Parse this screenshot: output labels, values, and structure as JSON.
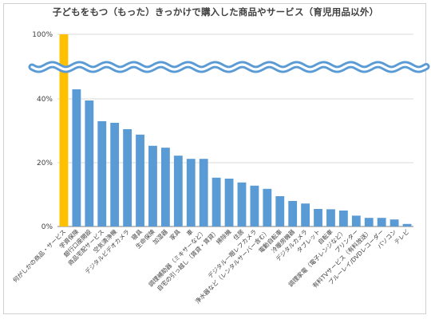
{
  "chart_data": {
    "type": "bar",
    "title": "子どもをもつ（もった）きっかけで購入した商品やサービス（育児用品以外）",
    "xlabel": "",
    "ylabel": "",
    "y_tick_labels": [
      "0%",
      "20%",
      "40%",
      "100%"
    ],
    "y_scale": "broken",
    "y_break": {
      "from": 50,
      "to": 95
    },
    "grid": true,
    "legend": "none",
    "categories": [
      "何がしかの商品・サービス",
      "学資保険",
      "銀行口座開設",
      "商品宅配サービス",
      "空気清浄機",
      "デジタルビデオカメラ",
      "寝具",
      "生命保険",
      "加湿器",
      "家具",
      "車",
      "調理補助器（ミキサーなど）",
      "自宅の引っ越し（賃貸・賃貸）",
      "掃除機",
      "住居",
      "デジタル一眼レフカメラ",
      "浄水器など（レンタルサーバー含む）",
      "電動自転車",
      "冷暖房機器",
      "デジタルカメラ",
      "タブレット",
      "自転車",
      "調理家電（電子レンジなど）",
      "プリンター",
      "有料TVサービス（有料放送）",
      "ブルーレイ/DVDレコーダー",
      "パソコン",
      "テレビ"
    ],
    "values": [
      100,
      43,
      39.5,
      33,
      32.5,
      30.5,
      28.8,
      25.3,
      24.7,
      22.2,
      21.2,
      21.2,
      15.3,
      15,
      13.8,
      12.8,
      11.8,
      9.5,
      8,
      7.2,
      5.5,
      5.4,
      5,
      3.4,
      2.7,
      2.7,
      2.2,
      0.8
    ],
    "colors": {
      "highlight": "#FFC000",
      "bar": "#5B9BD5",
      "break_band": "#5B9BD5",
      "grid": "#d9d9d9",
      "axis": "#808080"
    }
  }
}
